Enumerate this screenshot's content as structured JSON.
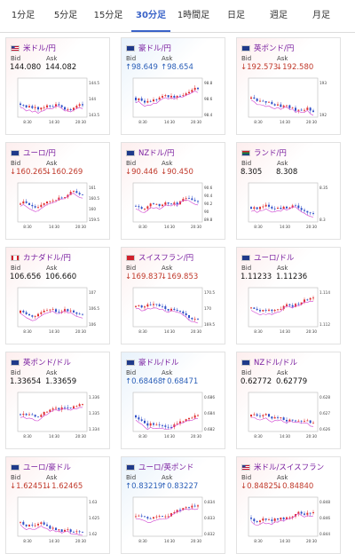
{
  "tabs": [
    {
      "label": "1分足",
      "active": false
    },
    {
      "label": "5分足",
      "active": false
    },
    {
      "label": "15分足",
      "active": false
    },
    {
      "label": "30分足",
      "active": true
    },
    {
      "label": "1時間足",
      "active": false
    },
    {
      "label": "日足",
      "active": false
    },
    {
      "label": "週足",
      "active": false
    },
    {
      "label": "月足",
      "active": false
    }
  ],
  "bid_label": "Bid",
  "ask_label": "Ask",
  "colors": {
    "accent": "#3a63c8",
    "pair": "#7a1fa0",
    "up": "#2b5fb8",
    "down": "#c0392b",
    "candle_up": "#e03030",
    "candle_down": "#3050c8",
    "ma": "#d040d0"
  },
  "x_ticks": [
    "8:30",
    "14:30",
    "20:30"
  ],
  "cards": [
    {
      "pair": "米ドル/円",
      "bid": "144.080",
      "ask": "144.082",
      "dir": "none",
      "bg": "red",
      "flag": "us",
      "y_ticks": [
        "144.5",
        "144",
        "143.5"
      ]
    },
    {
      "pair": "豪ドル/円",
      "bid": "98.649",
      "ask": "98.654",
      "dir": "up",
      "bg": "blue",
      "flag": "au",
      "y_ticks": [
        "98.8",
        "98.6",
        "98.4"
      ]
    },
    {
      "pair": "英ポンド/円",
      "bid": "192.573",
      "ask": "192.580",
      "dir": "down",
      "bg": "red",
      "flag": "gb",
      "y_ticks": [
        "193",
        "192"
      ]
    },
    {
      "pair": "ユーロ/円",
      "bid": "160.265",
      "ask": "160.269",
      "dir": "down",
      "bg": "red",
      "flag": "eu",
      "y_ticks": [
        "161",
        "160.5",
        "160",
        "159.5"
      ]
    },
    {
      "pair": "NZドル/円",
      "bid": "90.446",
      "ask": "90.450",
      "dir": "down",
      "bg": "red",
      "flag": "nz",
      "y_ticks": [
        "90.6",
        "90.4",
        "90.2",
        "90",
        "89.8"
      ]
    },
    {
      "pair": "ランド/円",
      "bid": "8.305",
      "ask": "8.308",
      "dir": "none",
      "bg": "red",
      "flag": "za",
      "y_ticks": [
        "8.35",
        "8.3"
      ]
    },
    {
      "pair": "カナダドル/円",
      "bid": "106.656",
      "ask": "106.660",
      "dir": "none",
      "bg": "red",
      "flag": "ca",
      "y_ticks": [
        "107",
        "106.5",
        "106"
      ]
    },
    {
      "pair": "スイスフラン/円",
      "bid": "169.837",
      "ask": "169.853",
      "dir": "down",
      "bg": "red",
      "flag": "ch",
      "y_ticks": [
        "170.5",
        "170",
        "169.5"
      ]
    },
    {
      "pair": "ユーロ/ドル",
      "bid": "1.11233",
      "ask": "1.11236",
      "dir": "none",
      "bg": "red",
      "flag": "eu",
      "y_ticks": [
        "1.114",
        "1.112"
      ]
    },
    {
      "pair": "英ポンド/ドル",
      "bid": "1.33654",
      "ask": "1.33659",
      "dir": "none",
      "bg": "red",
      "flag": "gb",
      "y_ticks": [
        "1.336",
        "1.335",
        "1.334"
      ]
    },
    {
      "pair": "豪ドル/ドル",
      "bid": "0.68468",
      "ask": "0.68471",
      "dir": "up",
      "bg": "blue",
      "flag": "au",
      "y_ticks": [
        "0.686",
        "0.684",
        "0.682"
      ]
    },
    {
      "pair": "NZドル/ドル",
      "bid": "0.62772",
      "ask": "0.62779",
      "dir": "none",
      "bg": "red",
      "flag": "nz",
      "y_ticks": [
        "0.628",
        "0.627",
        "0.626"
      ]
    },
    {
      "pair": "ユーロ/豪ドル",
      "bid": "1.62451",
      "ask": "1.62465",
      "dir": "down",
      "bg": "red",
      "flag": "eu",
      "y_ticks": [
        "1.63",
        "1.625",
        "1.62"
      ]
    },
    {
      "pair": "ユーロ/英ポンド",
      "bid": "0.83219",
      "ask": "0.83227",
      "dir": "up",
      "bg": "blue",
      "flag": "eu",
      "y_ticks": [
        "0.834",
        "0.833",
        "0.832"
      ]
    },
    {
      "pair": "米ドル/スイスフラン",
      "bid": "0.84825",
      "ask": "0.84840",
      "dir": "down",
      "bg": "red",
      "flag": "us",
      "y_ticks": [
        "0.848",
        "0.846",
        "0.844"
      ]
    }
  ]
}
